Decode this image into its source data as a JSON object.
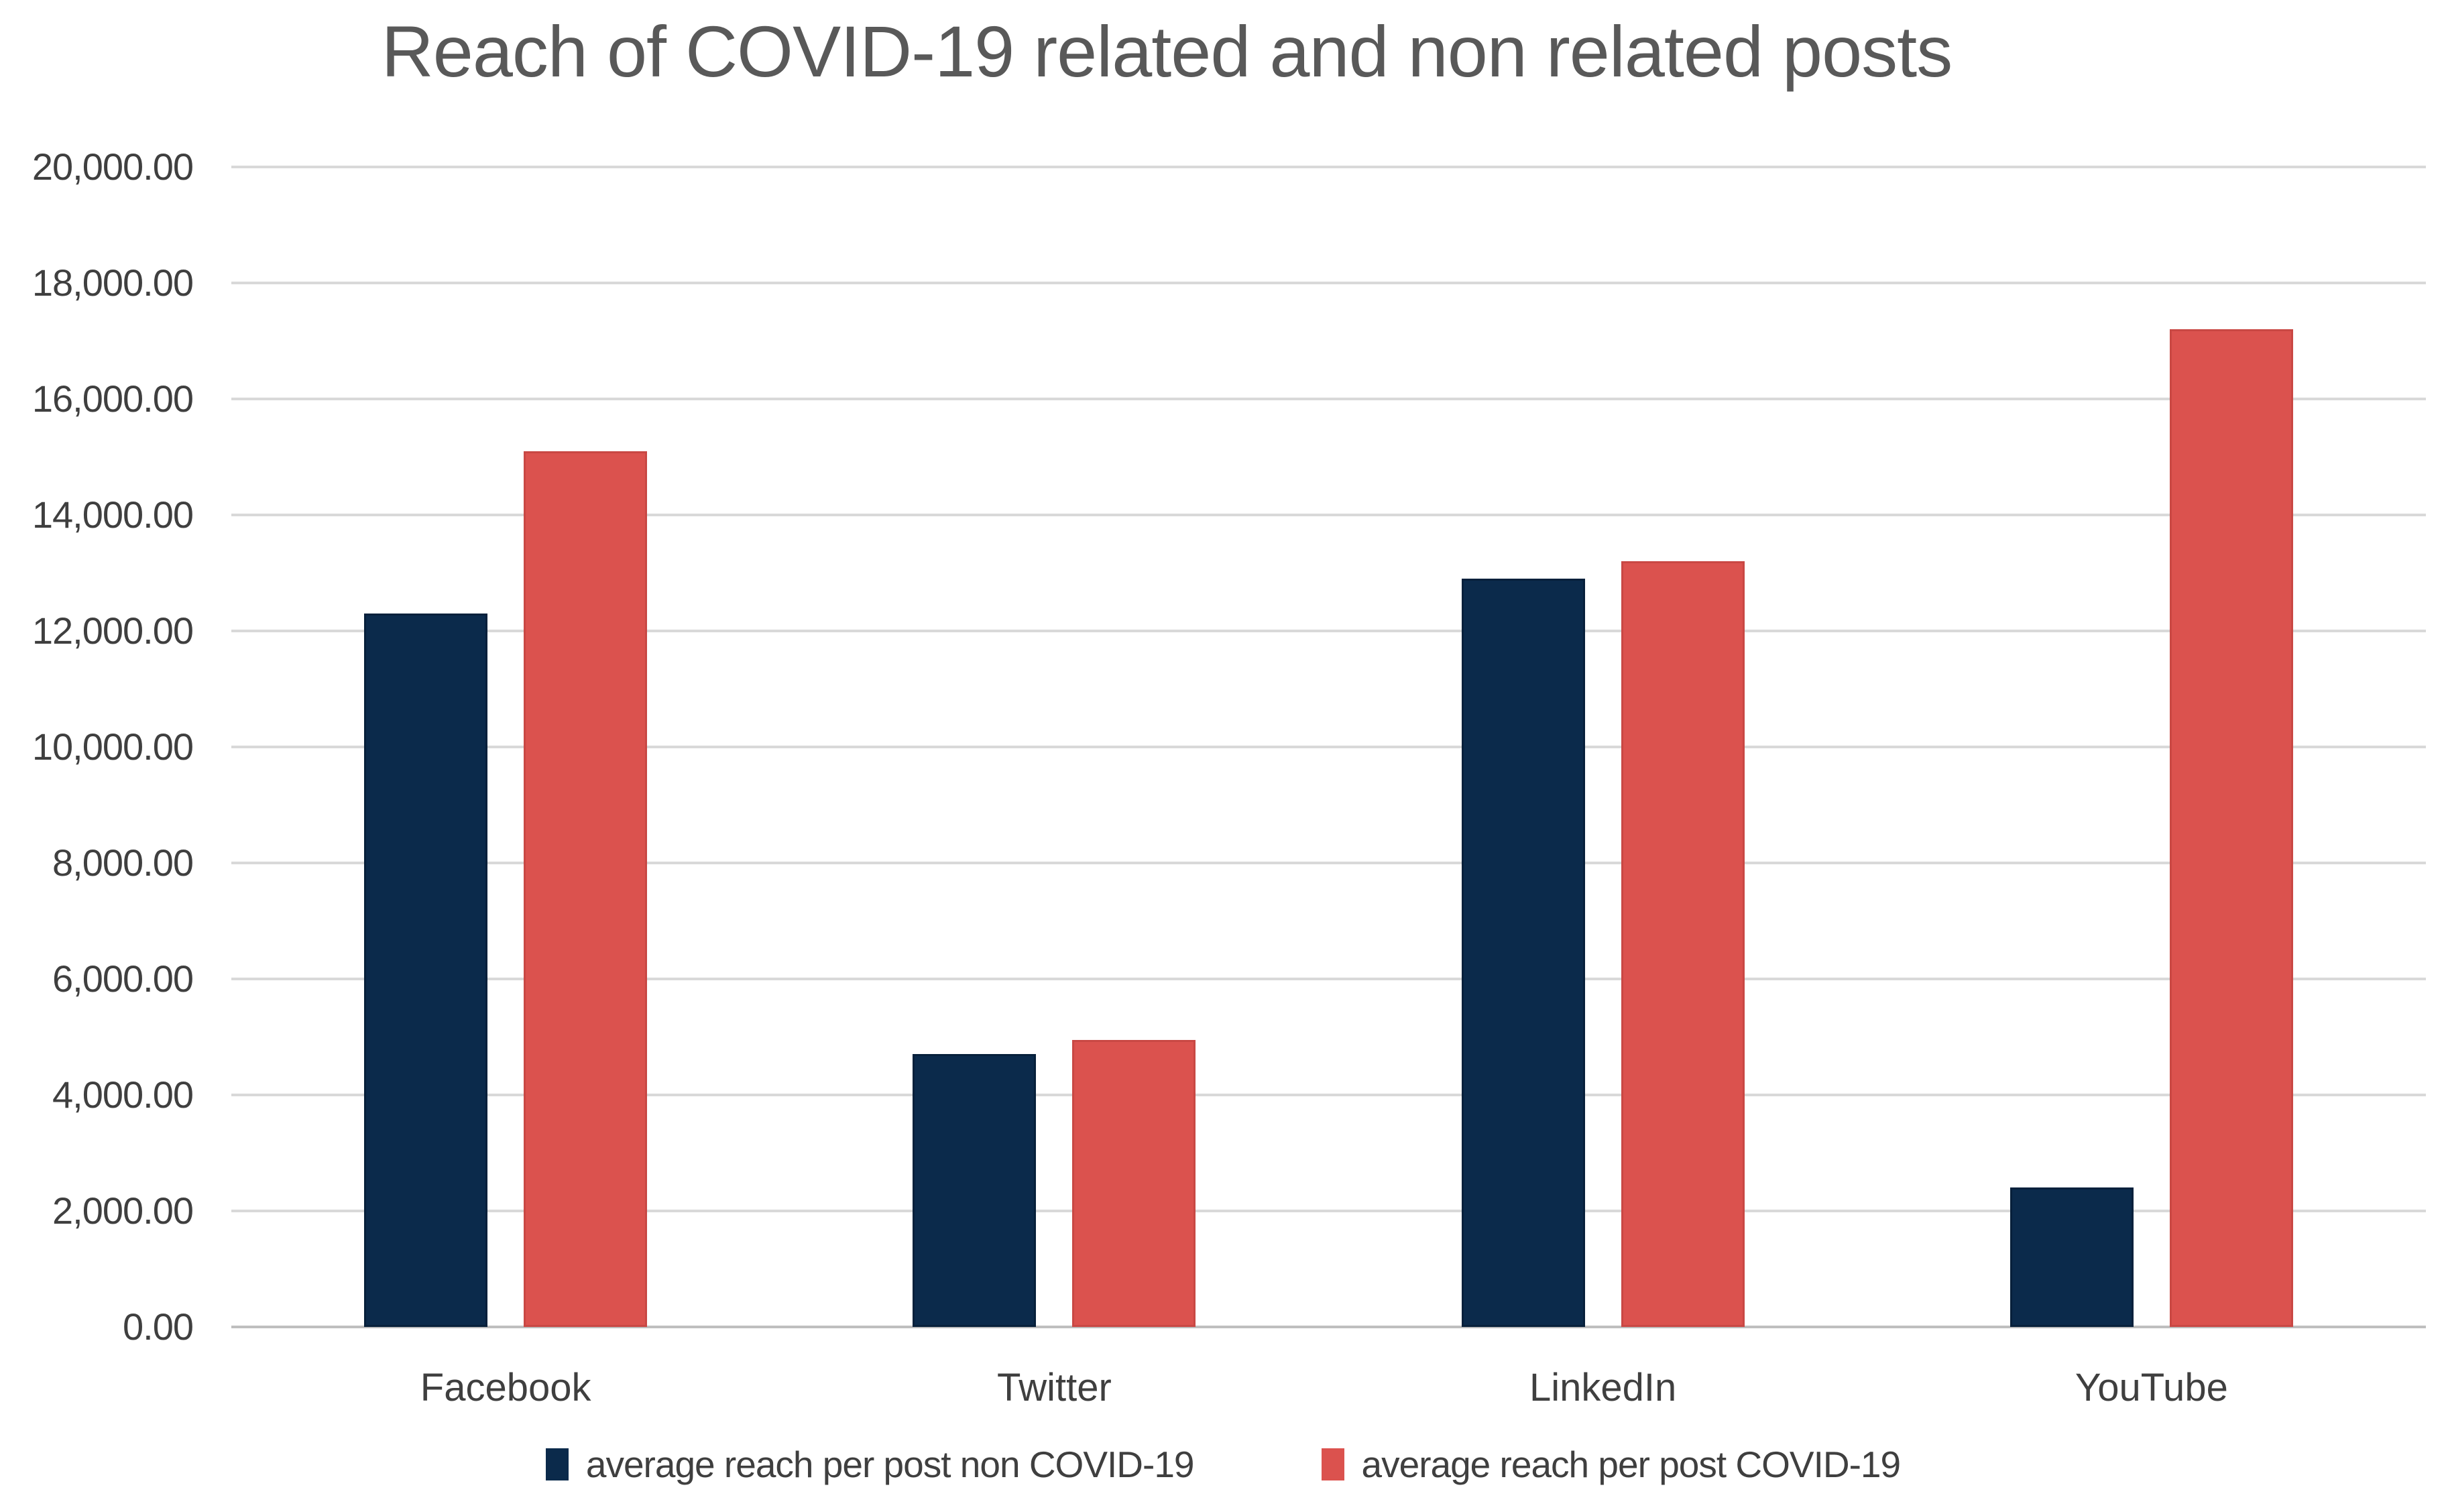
{
  "chart_data": {
    "type": "bar",
    "title": "Reach of COVID-19 related and non related posts",
    "categories": [
      "Facebook",
      "Twitter",
      "LinkedIn",
      "YouTube"
    ],
    "series": [
      {
        "name": "average reach per post non COVID-19",
        "key": "non-covid",
        "color": "#0B2A4B",
        "border_color": "#07203B",
        "values": [
          12300,
          4700,
          12900,
          2400
        ]
      },
      {
        "name": "average reach per post COVID-19",
        "key": "covid",
        "color": "#DB524E",
        "border_color": "#C94844",
        "values": [
          15100,
          4950,
          13200,
          17200
        ]
      }
    ],
    "xlabel": "",
    "ylabel": "",
    "ylim": [
      0,
      20000
    ],
    "ytick_step": 2000,
    "yticks": [
      {
        "value": 0,
        "label": "0.00"
      },
      {
        "value": 2000,
        "label": "2,000.00"
      },
      {
        "value": 4000,
        "label": "4,000.00"
      },
      {
        "value": 6000,
        "label": "6,000.00"
      },
      {
        "value": 8000,
        "label": "8,000.00"
      },
      {
        "value": 10000,
        "label": "10,000.00"
      },
      {
        "value": 12000,
        "label": "12,000.00"
      },
      {
        "value": 14000,
        "label": "14,000.00"
      },
      {
        "value": 16000,
        "label": "16,000.00"
      },
      {
        "value": 18000,
        "label": "18,000.00"
      },
      {
        "value": 20000,
        "label": "20,000.00"
      }
    ],
    "grid": true,
    "gridline_color": "#D9D9D9",
    "baseline_color": "#BFBFBF",
    "title_color": "#595959",
    "text_color": "#3F3F3F",
    "legend_position": "bottom"
  }
}
